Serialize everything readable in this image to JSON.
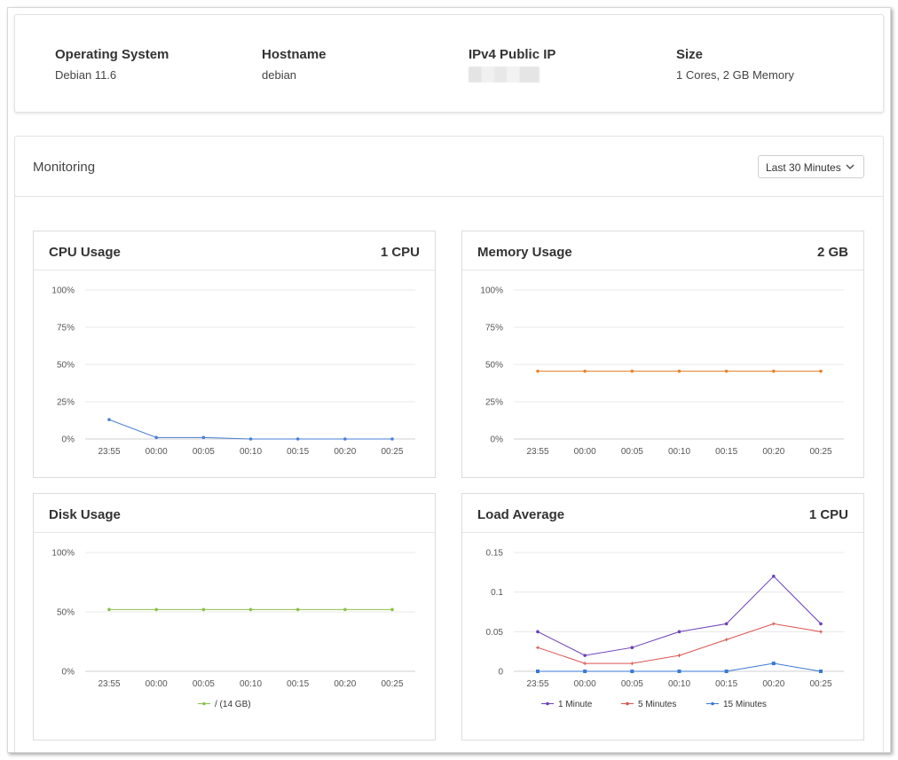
{
  "summary": {
    "os": {
      "label": "Operating System",
      "value": "Debian 11.6"
    },
    "hostname": {
      "label": "Hostname",
      "value": "debian"
    },
    "ip": {
      "label": "IPv4 Public IP",
      "value": ""
    },
    "size": {
      "label": "Size",
      "value": "1 Cores, 2 GB Memory"
    }
  },
  "monitoring": {
    "title": "Monitoring",
    "range": "Last 30 Minutes"
  },
  "charts": {
    "cpu": {
      "title": "CPU Usage",
      "meta": "1 CPU"
    },
    "memory": {
      "title": "Memory Usage",
      "meta": "2 GB"
    },
    "disk": {
      "title": "Disk Usage",
      "meta": ""
    },
    "load": {
      "title": "Load Average",
      "meta": "1 CPU"
    }
  },
  "colors": {
    "cpu": "#4a7fd4",
    "memory": "#e8832e",
    "disk": "#8bc34a",
    "load_1": "#6a3fb8",
    "load_5": "#d9534f",
    "load_15": "#3a78d6",
    "grid": "#e8e8e8"
  },
  "chart_data": [
    {
      "type": "line",
      "categories": [
        "23:55",
        "00:00",
        "00:05",
        "00:10",
        "00:15",
        "00:20",
        "00:25"
      ],
      "yticks": [
        "0%",
        "25%",
        "50%",
        "75%",
        "100%"
      ],
      "ylim": [
        0,
        100
      ],
      "series": [
        {
          "values": [
            13,
            1,
            1,
            0,
            0,
            0,
            0
          ]
        }
      ]
    },
    {
      "type": "line",
      "categories": [
        "23:55",
        "00:00",
        "00:05",
        "00:10",
        "00:15",
        "00:20",
        "00:25"
      ],
      "yticks": [
        "0%",
        "25%",
        "50%",
        "75%",
        "100%"
      ],
      "ylim": [
        0,
        100
      ],
      "series": [
        {
          "values": [
            45.5,
            45.5,
            45.5,
            45.5,
            45.5,
            45.5,
            45.5
          ]
        }
      ]
    },
    {
      "type": "line",
      "categories": [
        "23:55",
        "00:00",
        "00:05",
        "00:10",
        "00:15",
        "00:20",
        "00:25"
      ],
      "yticks": [
        "0%",
        "50%",
        "100%"
      ],
      "ylim": [
        0,
        100
      ],
      "series": [
        {
          "name": "/ (14 GB)",
          "values": [
            52,
            52,
            52,
            52,
            52,
            52,
            52
          ]
        }
      ]
    },
    {
      "type": "line",
      "categories": [
        "23:55",
        "00:00",
        "00:05",
        "00:10",
        "00:15",
        "00:20",
        "00:25"
      ],
      "yticks": [
        "0",
        "0.05",
        "0.1",
        "0.15"
      ],
      "ylim": [
        0,
        0.15
      ],
      "series": [
        {
          "name": "1 Minute",
          "values": [
            0.05,
            0.02,
            0.03,
            0.05,
            0.06,
            0.12,
            0.06
          ]
        },
        {
          "name": "5 Minutes",
          "values": [
            0.03,
            0.01,
            0.01,
            0.02,
            0.04,
            0.06,
            0.05
          ]
        },
        {
          "name": "15 Minutes",
          "values": [
            0,
            0,
            0,
            0,
            0,
            0.01,
            0
          ]
        }
      ]
    }
  ]
}
